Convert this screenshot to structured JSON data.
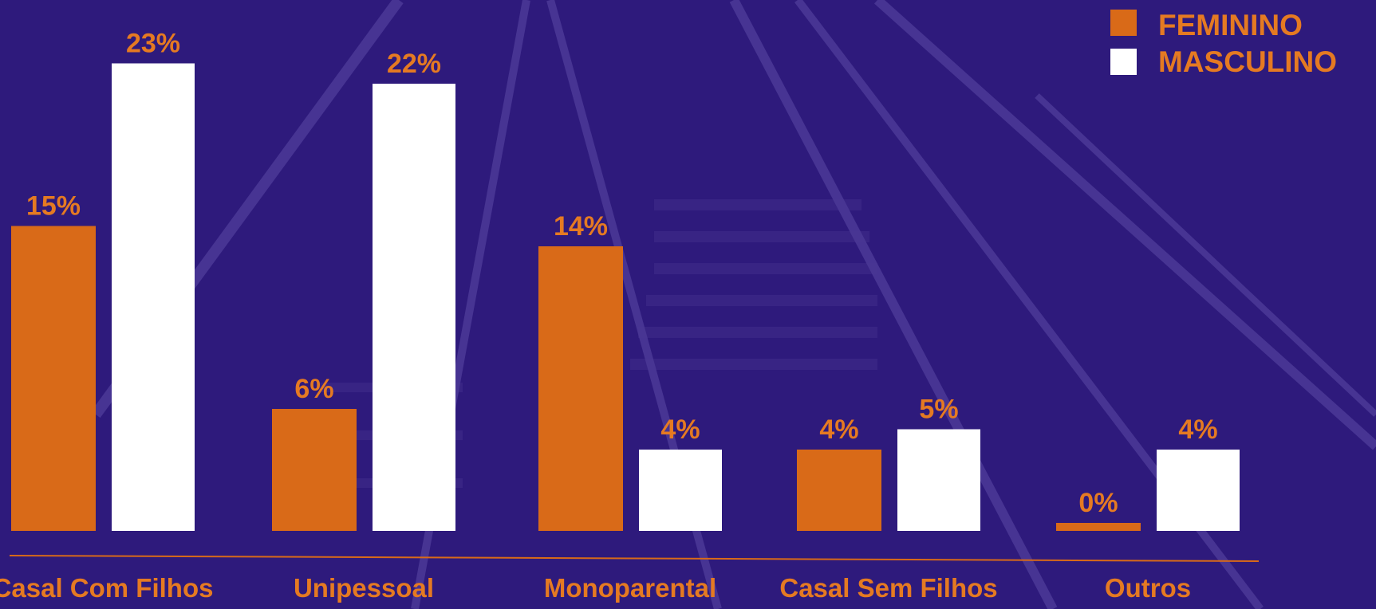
{
  "colors": {
    "background": "#2e1a7c",
    "feminino": "#d96a18",
    "masculino": "#ffffff",
    "text": "#e57a22",
    "axis": "#d96a18"
  },
  "legend": {
    "items": [
      {
        "label": "FEMININO",
        "color": "#d96a18"
      },
      {
        "label": "MASCULINO",
        "color": "#ffffff"
      }
    ]
  },
  "chart_data": {
    "type": "bar",
    "categories": [
      "Casal Com Filhos",
      "Unipessoal",
      "Monoparental",
      "Casal Sem Filhos",
      "Outros"
    ],
    "series": [
      {
        "name": "FEMININO",
        "values": [
          15,
          6,
          14,
          4,
          0
        ],
        "labels": [
          "15%",
          "6%",
          "14%",
          "4%",
          "0%"
        ],
        "color": "#d96a18"
      },
      {
        "name": "MASCULINO",
        "values": [
          23,
          22,
          4,
          5,
          4
        ],
        "labels": [
          "23%",
          "22%",
          "4%",
          "5%",
          "4%"
        ],
        "color": "#ffffff"
      }
    ],
    "title": "",
    "xlabel": "",
    "ylabel": "",
    "ylim": [
      0,
      25
    ],
    "grid": false,
    "legend_position": "top-right"
  }
}
